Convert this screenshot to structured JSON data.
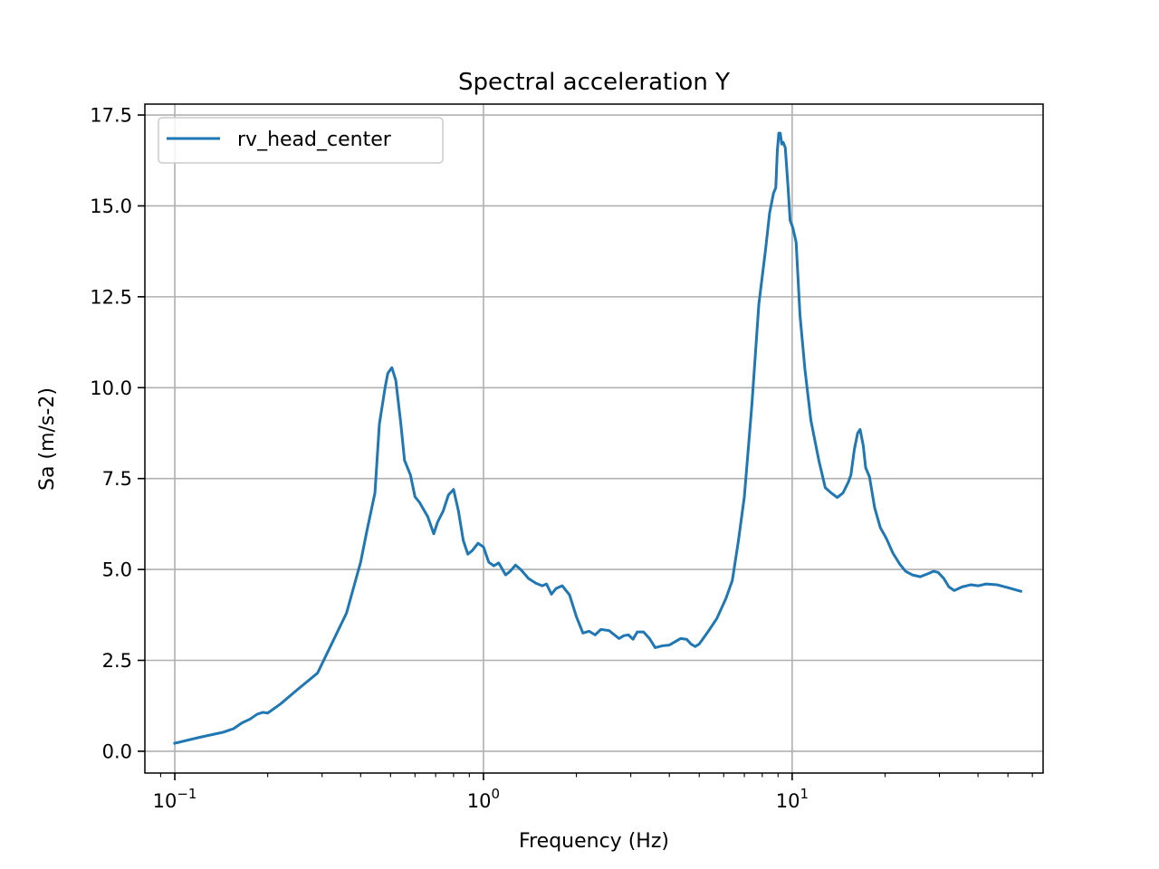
{
  "chart_data": {
    "type": "line",
    "title": "Spectral acceleration Y",
    "xlabel": "Frequency (Hz)",
    "ylabel": "Sa (m/s-2)",
    "xscale": "log",
    "xlim": [
      0.08,
      65
    ],
    "ylim": [
      -0.6,
      17.8
    ],
    "grid": true,
    "legend_position": "top-left",
    "x_ticks": [
      {
        "value": 0.1,
        "base": "10",
        "exp": "−1"
      },
      {
        "value": 1,
        "base": "10",
        "exp": "0"
      },
      {
        "value": 10,
        "base": "10",
        "exp": "1"
      }
    ],
    "y_ticks": [
      {
        "value": 0,
        "label": "0.0"
      },
      {
        "value": 2.5,
        "label": "2.5"
      },
      {
        "value": 5,
        "label": "5.0"
      },
      {
        "value": 7.5,
        "label": "7.5"
      },
      {
        "value": 10,
        "label": "10.0"
      },
      {
        "value": 12.5,
        "label": "12.5"
      },
      {
        "value": 15,
        "label": "15.0"
      },
      {
        "value": 17.5,
        "label": "17.5"
      }
    ],
    "series": [
      {
        "name": "rv_head_center",
        "color": "#1f77b4",
        "points": [
          [
            0.1,
            0.22
          ],
          [
            0.12,
            0.38
          ],
          [
            0.143,
            0.52
          ],
          [
            0.155,
            0.62
          ],
          [
            0.165,
            0.78
          ],
          [
            0.175,
            0.88
          ],
          [
            0.185,
            1.02
          ],
          [
            0.193,
            1.07
          ],
          [
            0.2,
            1.05
          ],
          [
            0.22,
            1.3
          ],
          [
            0.25,
            1.7
          ],
          [
            0.29,
            2.15
          ],
          [
            0.32,
            2.9
          ],
          [
            0.36,
            3.8
          ],
          [
            0.4,
            5.2
          ],
          [
            0.42,
            6.1
          ],
          [
            0.445,
            7.1
          ],
          [
            0.46,
            9.0
          ],
          [
            0.48,
            10.0
          ],
          [
            0.49,
            10.4
          ],
          [
            0.505,
            10.55
          ],
          [
            0.52,
            10.2
          ],
          [
            0.54,
            9.0
          ],
          [
            0.555,
            8.0
          ],
          [
            0.58,
            7.6
          ],
          [
            0.6,
            7.0
          ],
          [
            0.62,
            6.85
          ],
          [
            0.66,
            6.45
          ],
          [
            0.69,
            5.98
          ],
          [
            0.71,
            6.3
          ],
          [
            0.74,
            6.6
          ],
          [
            0.77,
            7.05
          ],
          [
            0.8,
            7.2
          ],
          [
            0.83,
            6.6
          ],
          [
            0.86,
            5.8
          ],
          [
            0.89,
            5.42
          ],
          [
            0.92,
            5.52
          ],
          [
            0.96,
            5.72
          ],
          [
            1.0,
            5.62
          ],
          [
            1.04,
            5.2
          ],
          [
            1.08,
            5.1
          ],
          [
            1.12,
            5.18
          ],
          [
            1.18,
            4.85
          ],
          [
            1.22,
            4.95
          ],
          [
            1.27,
            5.12
          ],
          [
            1.32,
            5.0
          ],
          [
            1.4,
            4.75
          ],
          [
            1.48,
            4.62
          ],
          [
            1.55,
            4.55
          ],
          [
            1.6,
            4.6
          ],
          [
            1.66,
            4.32
          ],
          [
            1.72,
            4.48
          ],
          [
            1.8,
            4.55
          ],
          [
            1.9,
            4.3
          ],
          [
            2.0,
            3.7
          ],
          [
            2.1,
            3.25
          ],
          [
            2.2,
            3.3
          ],
          [
            2.3,
            3.2
          ],
          [
            2.4,
            3.35
          ],
          [
            2.55,
            3.32
          ],
          [
            2.75,
            3.1
          ],
          [
            2.85,
            3.18
          ],
          [
            2.95,
            3.2
          ],
          [
            3.05,
            3.08
          ],
          [
            3.15,
            3.28
          ],
          [
            3.3,
            3.28
          ],
          [
            3.45,
            3.1
          ],
          [
            3.6,
            2.85
          ],
          [
            3.8,
            2.9
          ],
          [
            4.0,
            2.92
          ],
          [
            4.15,
            3.0
          ],
          [
            4.35,
            3.1
          ],
          [
            4.55,
            3.08
          ],
          [
            4.7,
            2.95
          ],
          [
            4.85,
            2.88
          ],
          [
            5.0,
            2.95
          ],
          [
            5.1,
            3.05
          ],
          [
            5.35,
            3.3
          ],
          [
            5.7,
            3.65
          ],
          [
            6.1,
            4.2
          ],
          [
            6.4,
            4.7
          ],
          [
            6.7,
            5.8
          ],
          [
            7.0,
            7.0
          ],
          [
            7.4,
            9.5
          ],
          [
            7.8,
            12.3
          ],
          [
            8.2,
            13.8
          ],
          [
            8.45,
            14.8
          ],
          [
            8.7,
            15.35
          ],
          [
            8.85,
            15.5
          ],
          [
            8.95,
            16.5
          ],
          [
            9.05,
            17.0
          ],
          [
            9.15,
            17.0
          ],
          [
            9.25,
            16.7
          ],
          [
            9.35,
            16.75
          ],
          [
            9.5,
            16.6
          ],
          [
            9.7,
            15.5
          ],
          [
            9.85,
            14.6
          ],
          [
            10.05,
            14.4
          ],
          [
            10.3,
            14.0
          ],
          [
            10.6,
            12.0
          ],
          [
            11.0,
            10.5
          ],
          [
            11.5,
            9.1
          ],
          [
            12.2,
            8.0
          ],
          [
            12.8,
            7.25
          ],
          [
            13.4,
            7.1
          ],
          [
            14.0,
            6.98
          ],
          [
            14.6,
            7.1
          ],
          [
            15.2,
            7.4
          ],
          [
            15.5,
            7.6
          ],
          [
            15.9,
            8.3
          ],
          [
            16.3,
            8.75
          ],
          [
            16.6,
            8.85
          ],
          [
            17.0,
            8.4
          ],
          [
            17.3,
            7.8
          ],
          [
            17.8,
            7.55
          ],
          [
            18.5,
            6.7
          ],
          [
            19.3,
            6.15
          ],
          [
            20.2,
            5.85
          ],
          [
            21.2,
            5.45
          ],
          [
            22.3,
            5.15
          ],
          [
            23.3,
            4.95
          ],
          [
            24.5,
            4.85
          ],
          [
            26.0,
            4.8
          ],
          [
            27.5,
            4.88
          ],
          [
            28.7,
            4.95
          ],
          [
            29.7,
            4.92
          ],
          [
            31.0,
            4.75
          ],
          [
            32.2,
            4.52
          ],
          [
            33.5,
            4.42
          ],
          [
            35.5,
            4.52
          ],
          [
            38.0,
            4.58
          ],
          [
            40.0,
            4.55
          ],
          [
            42.5,
            4.6
          ],
          [
            46.0,
            4.58
          ],
          [
            50.0,
            4.5
          ],
          [
            55.0,
            4.4
          ]
        ]
      }
    ]
  }
}
